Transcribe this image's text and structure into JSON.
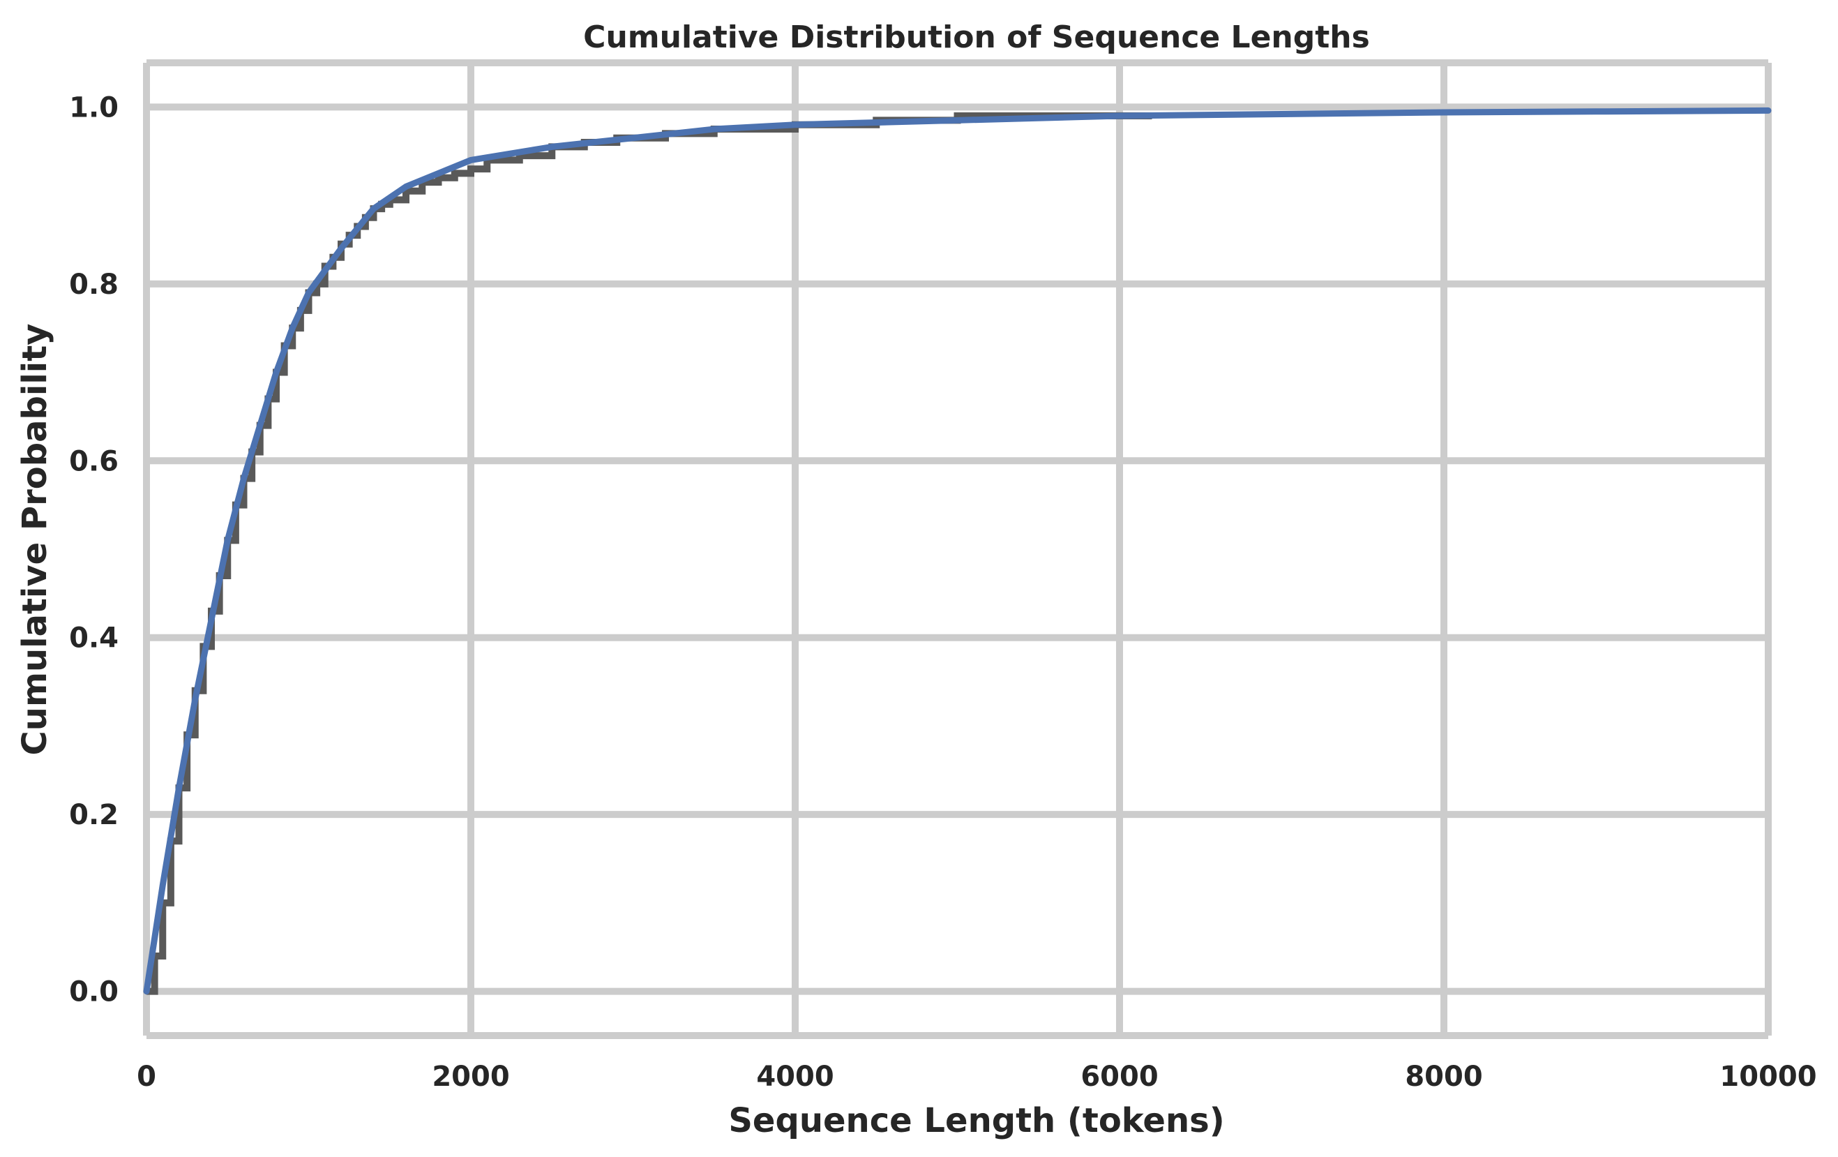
{
  "chart_data": {
    "type": "line",
    "title": "Cumulative Distribution of Sequence Lengths",
    "xlabel": "Sequence Length (tokens)",
    "ylabel": "Cumulative Probability",
    "xlim": [
      0,
      10000
    ],
    "ylim": [
      -0.05,
      1.05
    ],
    "grid": true,
    "legend": "none",
    "x_ticks": [
      0,
      2000,
      4000,
      6000,
      8000,
      10000
    ],
    "x_tick_labels": [
      "0",
      "2000",
      "4000",
      "6000",
      "8000",
      "10000"
    ],
    "y_ticks": [
      0.0,
      0.2,
      0.4,
      0.6,
      0.8,
      1.0
    ],
    "y_tick_labels": [
      "0.0",
      "0.2",
      "0.4",
      "0.6",
      "0.8",
      "1.0"
    ],
    "colors": {
      "empirical": "#595959",
      "fitted": "#4c72b0",
      "grid": "#cccccc"
    },
    "series": [
      {
        "kind": "step",
        "x": [
          0,
          50,
          100,
          150,
          200,
          250,
          300,
          350,
          400,
          450,
          500,
          550,
          600,
          650,
          700,
          750,
          800,
          850,
          900,
          950,
          1000,
          1050,
          1100,
          1150,
          1200,
          1250,
          1300,
          1350,
          1400,
          1450,
          1500,
          1600,
          1700,
          1800,
          1900,
          2000,
          2100,
          2300,
          2500,
          2700,
          2900,
          3200,
          3500,
          4000,
          4500,
          5000,
          5500,
          6000,
          6200
        ],
        "y": [
          0.0,
          0.04,
          0.1,
          0.17,
          0.23,
          0.29,
          0.34,
          0.39,
          0.43,
          0.47,
          0.51,
          0.55,
          0.58,
          0.61,
          0.64,
          0.67,
          0.7,
          0.73,
          0.75,
          0.77,
          0.79,
          0.8,
          0.82,
          0.83,
          0.845,
          0.855,
          0.865,
          0.875,
          0.885,
          0.89,
          0.895,
          0.905,
          0.915,
          0.92,
          0.925,
          0.93,
          0.94,
          0.945,
          0.955,
          0.96,
          0.965,
          0.97,
          0.975,
          0.98,
          0.985,
          0.99,
          0.99,
          0.99,
          0.99
        ]
      },
      {
        "kind": "line",
        "x": [
          0,
          100,
          200,
          300,
          400,
          500,
          600,
          700,
          800,
          900,
          1000,
          1200,
          1400,
          1600,
          1800,
          2000,
          2500,
          3000,
          3500,
          4000,
          5000,
          6000,
          7000,
          8000,
          9000,
          10000
        ],
        "y": [
          0.0,
          0.12,
          0.23,
          0.33,
          0.42,
          0.51,
          0.58,
          0.64,
          0.7,
          0.75,
          0.79,
          0.84,
          0.885,
          0.91,
          0.925,
          0.94,
          0.955,
          0.965,
          0.975,
          0.98,
          0.985,
          0.99,
          0.992,
          0.994,
          0.995,
          0.996
        ]
      }
    ]
  }
}
